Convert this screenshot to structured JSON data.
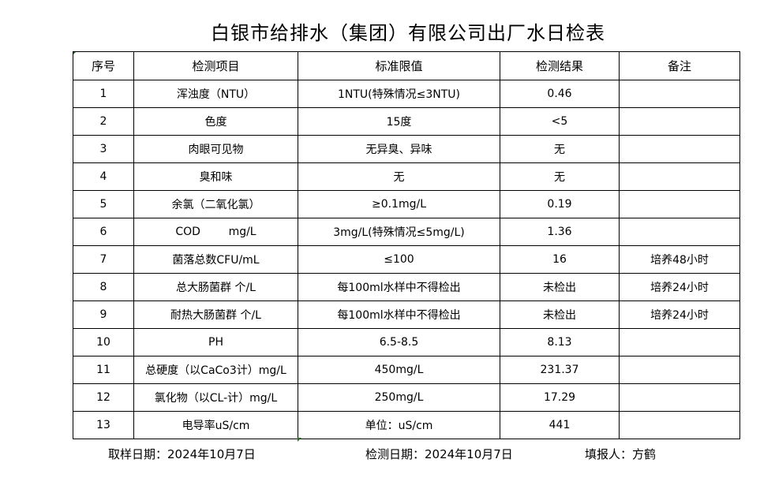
{
  "title": "白银市给排水（集团）有限公司出厂水日检表",
  "table": {
    "headers": [
      "序号",
      "检测项目",
      "标准限值",
      "检测结果",
      "备注"
    ],
    "rows": [
      [
        "1",
        "浑浊度（NTU）",
        "1NTU(特殊情况≤3NTU)",
        "0.46",
        ""
      ],
      [
        "2",
        "色度",
        "15度",
        "<5",
        ""
      ],
      [
        "3",
        "肉眼可见物",
        "无异臭、异味",
        "无",
        ""
      ],
      [
        "4",
        "臭和味",
        "无",
        "无",
        ""
      ],
      [
        "5",
        "余氯（二氧化氯）",
        "≥0.1mg/L",
        "0.19",
        ""
      ],
      [
        "6",
        "COD        mg/L",
        "3mg/L(特殊情况≤5mg/L)",
        "1.36",
        ""
      ],
      [
        "7",
        "菌落总数CFU/mL",
        "≤100",
        "16",
        "培养48小时"
      ],
      [
        "8",
        "总大肠菌群 个/L",
        "每100ml水样中不得检出",
        "未检出",
        "培养24小时"
      ],
      [
        "9",
        "耐热大肠菌群 个/L",
        "每100ml水样中不得检出",
        "未检出",
        "培养24小时"
      ],
      [
        "10",
        "PH",
        "6.5-8.5",
        "8.13",
        ""
      ],
      [
        "11",
        "总硬度（以CaCo3计）mg/L",
        "450mg/L",
        "231.37",
        ""
      ],
      [
        "12",
        "氯化物（以CL-计）mg/L",
        "250mg/L",
        "17.29",
        ""
      ],
      [
        "13",
        "电导率uS/cm",
        "单位：uS/cm",
        "441",
        ""
      ]
    ]
  },
  "footer": {
    "sampling_date": "取样日期：2024年10月7日",
    "test_date": "检测日期：2024年10月7日",
    "filled_by": "填报人：方鹤"
  }
}
